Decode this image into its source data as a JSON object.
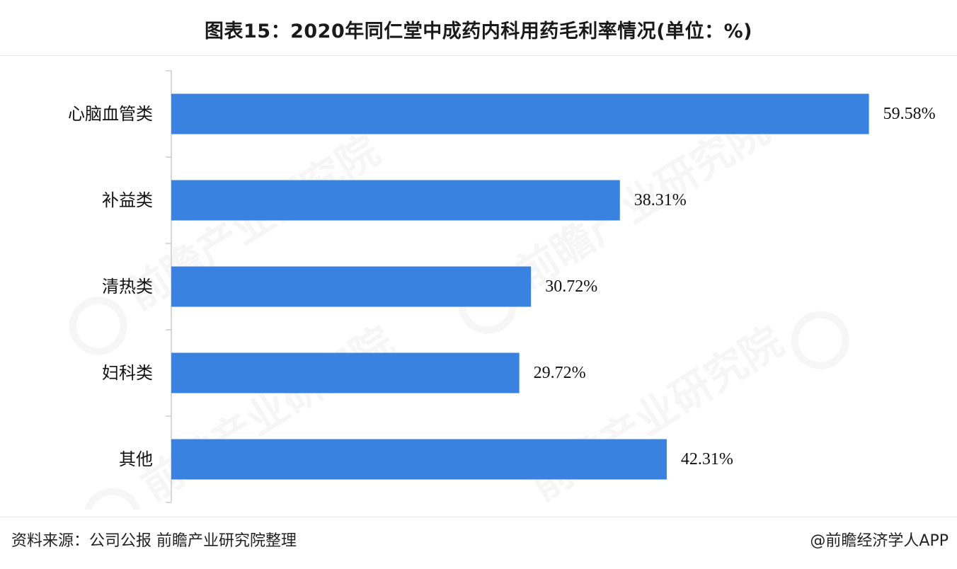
{
  "title": "图表15：2020年同仁堂中成药内科用药毛利率情况(单位：%)",
  "chart_data": {
    "type": "bar",
    "orientation": "horizontal",
    "categories": [
      "心脑血管类",
      "补益类",
      "清热类",
      "妇科类",
      "其他"
    ],
    "values": [
      59.58,
      38.31,
      30.72,
      29.72,
      42.31
    ],
    "value_labels": [
      "59.58%",
      "38.31%",
      "30.72%",
      "29.72%",
      "42.31%"
    ],
    "xlim": [
      0,
      70
    ],
    "bar_color": "#3a82e0",
    "grid": false
  },
  "footer": {
    "source": "资料来源：公司公报 前瞻产业研究院整理",
    "credit": "@前瞻经济学人APP"
  }
}
